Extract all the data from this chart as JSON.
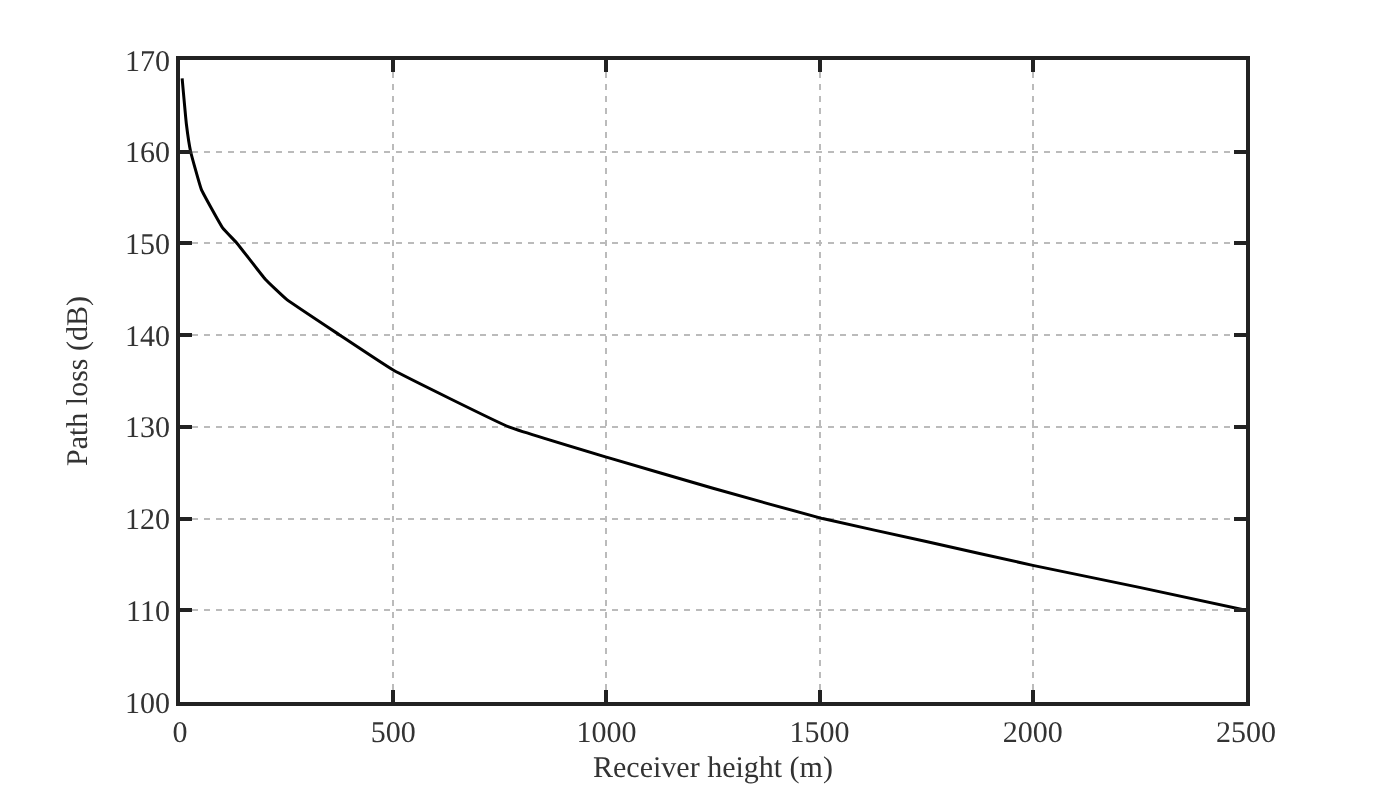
{
  "chart_data": {
    "type": "line",
    "xlabel": "Receiver height (m)",
    "ylabel": "Path loss (dB)",
    "x": [
      5,
      15,
      25,
      50,
      100,
      134,
      200,
      250,
      375,
      500,
      771,
      1000,
      1250,
      1507,
      1750,
      2000,
      2250,
      2500
    ],
    "series": [
      {
        "color": "#000000",
        "values": [
          168,
          163,
          160,
          155.9,
          151.7,
          150,
          146.1,
          143.9,
          140,
          136.2,
          130,
          126.7,
          123.3,
          120,
          117.5,
          114.9,
          112.5,
          110
        ]
      }
    ],
    "xlim": [
      0,
      2500
    ],
    "xticks": [
      0,
      500,
      1000,
      1500,
      2000,
      2500
    ],
    "ylim": [
      100,
      170
    ],
    "yticks": [
      100,
      110,
      120,
      130,
      140,
      150,
      160,
      170
    ],
    "grid": true,
    "legend": false,
    "marker": "none",
    "line_style": "solid"
  }
}
